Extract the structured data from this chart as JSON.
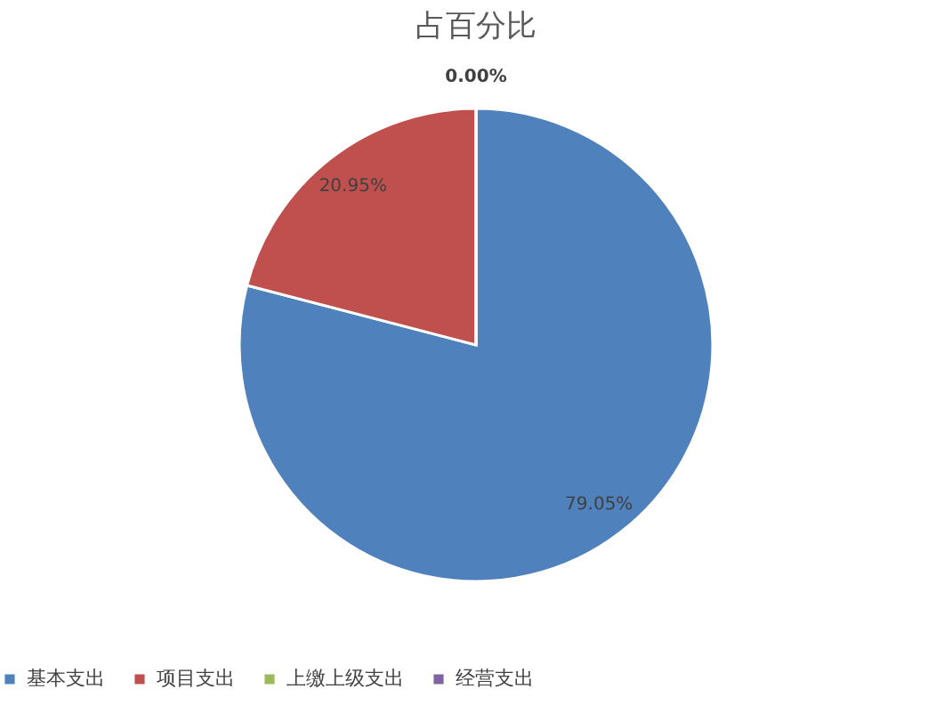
{
  "chart_data": {
    "type": "pie",
    "title": "占百分比",
    "categories": [
      "基本支出",
      "项目支出",
      "上缴上级支出",
      "经营支出"
    ],
    "values": [
      79.05,
      20.95,
      0,
      0
    ],
    "colors": [
      "#4f81bd",
      "#c0504d",
      "#9bbb59",
      "#8064a2"
    ],
    "value_labels": [
      "79.05%",
      "20.95%",
      "0.00%",
      null
    ],
    "legend": "bottom"
  }
}
